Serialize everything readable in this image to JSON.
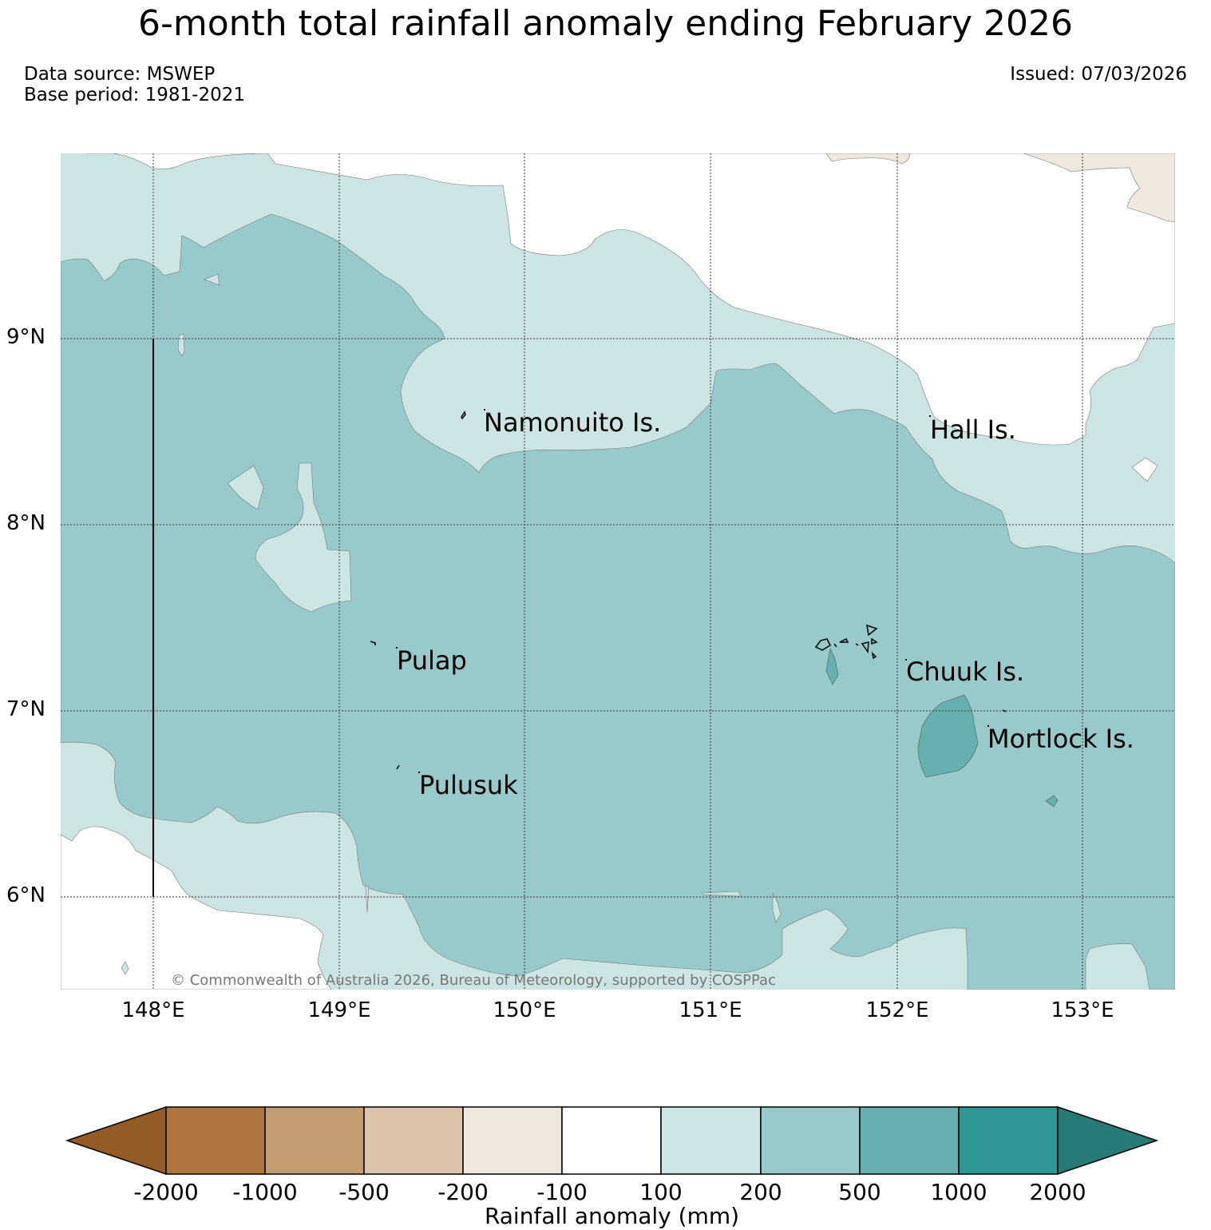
{
  "title": "6-month total rainfall anomaly ending February 2026",
  "data_source": "Data source: MSWEP",
  "base_period": "Base period: 1981-2021",
  "issued": "Issued: 07/03/2026",
  "copyright": "© Commonwealth of Australia 2026, Bureau of Meteorology, supported by COSPPac",
  "lat_labels": [
    "9°N",
    "8°N",
    "7°N",
    "6°N"
  ],
  "lon_labels": [
    "148°E",
    "149°E",
    "150°E",
    "151°E",
    "152°E",
    "153°E"
  ],
  "places": {
    "namonuito": "Namonuito Is.",
    "hall": "Hall Is.",
    "pulap": "Pulap",
    "chuuk": "Chuuk Is.",
    "mortlock": "Mortlock Is.",
    "pulusuk": "Pulusuk"
  },
  "colorbar": {
    "ticks": [
      "-2000",
      "-1000",
      "-500",
      "-200",
      "-100",
      "100",
      "200",
      "500",
      "1000",
      "2000"
    ],
    "label": "Rainfall anomaly (mm)",
    "colors": {
      "below_-2000": "#935b26",
      "-2000_-1000": "#ae763e",
      "-1000_-500": "#c49c74",
      "-500_-200": "#dcc3ab",
      "-200_-100": "#f0e7df",
      "-100_100": "#ffffff",
      "100_200": "#cce5e4",
      "200_500": "#99cacb",
      "500_1000": "#66b0b0",
      "1000_2000": "#2f9794",
      "above_2000": "#267b78"
    }
  },
  "colors": {
    "map_light_teal": "#cce5e4",
    "map_mid_teal": "#99cacb",
    "map_dark_teal": "#66b0b0",
    "map_light_brown": "#f0e7df",
    "copyright_text": "#777777"
  }
}
